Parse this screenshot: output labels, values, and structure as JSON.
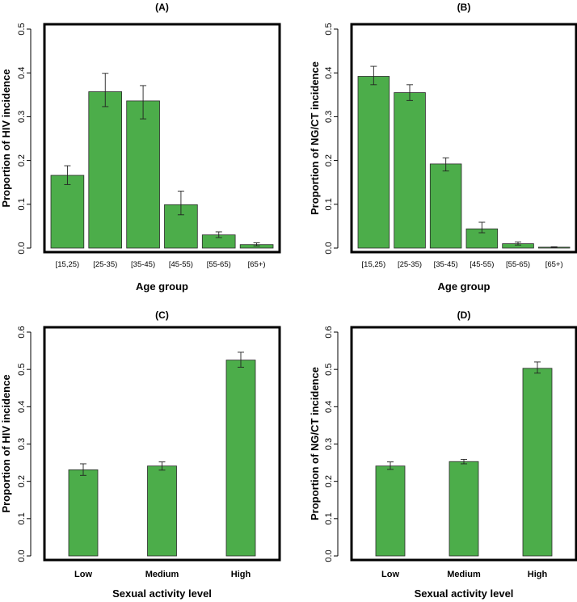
{
  "colors": {
    "bar": "#4cad4a",
    "bar_stroke": "#2a2a2a",
    "frame": "#000000"
  },
  "chart_data": [
    {
      "type": "bar",
      "title": "(A)",
      "xlabel": "Age group",
      "ylabel": "Proportion of HIV incidence",
      "ylim": [
        0,
        0.5
      ],
      "yticks": [
        "0.0",
        "0.1",
        "0.2",
        "0.3",
        "0.4",
        "0.5"
      ],
      "categories": [
        "[15,25)",
        "[25-35)",
        "[35-45)",
        "[45-55)",
        "[55-65)",
        "[65+)"
      ],
      "values": [
        0.166,
        0.357,
        0.336,
        0.099,
        0.03,
        0.008
      ],
      "error_low": [
        0.145,
        0.323,
        0.295,
        0.076,
        0.024,
        0.005
      ],
      "error_high": [
        0.188,
        0.399,
        0.371,
        0.13,
        0.037,
        0.012
      ]
    },
    {
      "type": "bar",
      "title": "(B)",
      "xlabel": "Age group",
      "ylabel": "Proportion of NG/CT incidence",
      "ylim": [
        0,
        0.5
      ],
      "yticks": [
        "0.0",
        "0.1",
        "0.2",
        "0.3",
        "0.4",
        "0.5"
      ],
      "categories": [
        "[15,25)",
        "[25-35)",
        "[35-45)",
        "[45-55)",
        "[55-65)",
        "[65+)"
      ],
      "values": [
        0.392,
        0.355,
        0.192,
        0.044,
        0.01,
        0.002
      ],
      "error_low": [
        0.373,
        0.337,
        0.176,
        0.035,
        0.007,
        0.001
      ],
      "error_high": [
        0.415,
        0.373,
        0.206,
        0.059,
        0.014,
        0.003
      ]
    },
    {
      "type": "bar",
      "title": "(C)",
      "xlabel": "Sexual activity level",
      "ylabel": "Proportion of HIV incidence",
      "ylim": [
        0,
        0.6
      ],
      "yticks": [
        "0.0",
        "0.1",
        "0.2",
        "0.3",
        "0.4",
        "0.5",
        "0.6"
      ],
      "categories": [
        "Low",
        "Medium",
        "High"
      ],
      "values": [
        0.231,
        0.241,
        0.525
      ],
      "error_low": [
        0.216,
        0.23,
        0.506
      ],
      "error_high": [
        0.247,
        0.252,
        0.546
      ]
    },
    {
      "type": "bar",
      "title": "(D)",
      "xlabel": "Sexual activity level",
      "ylabel": "Proportion of NG/CT incidence",
      "ylim": [
        0,
        0.6
      ],
      "yticks": [
        "0.0",
        "0.1",
        "0.2",
        "0.3",
        "0.4",
        "0.5",
        "0.6"
      ],
      "categories": [
        "Low",
        "Medium",
        "High"
      ],
      "values": [
        0.241,
        0.253,
        0.503
      ],
      "error_low": [
        0.232,
        0.247,
        0.49
      ],
      "error_high": [
        0.252,
        0.259,
        0.52
      ]
    }
  ]
}
